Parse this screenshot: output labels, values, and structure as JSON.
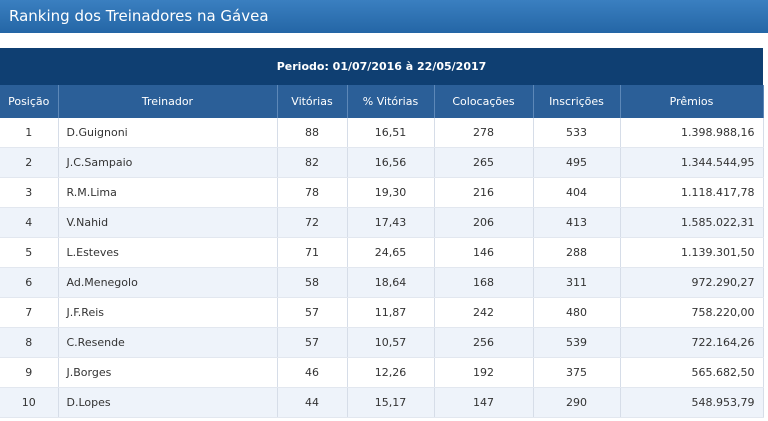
{
  "header": {
    "title": "Ranking dos Treinadores na Gávea"
  },
  "table": {
    "period": "Periodo: 01/07/2016 à 22/05/2017",
    "columns": [
      "Posição",
      "Treinador",
      "Vitórias",
      "% Vitórias",
      "Colocações",
      "Inscrições",
      "Prêmios"
    ],
    "rows": [
      [
        "1",
        "D.Guignoni",
        "88",
        "16,51",
        "278",
        "533",
        "1.398.988,16"
      ],
      [
        "2",
        "J.C.Sampaio",
        "82",
        "16,56",
        "265",
        "495",
        "1.344.544,95"
      ],
      [
        "3",
        "R.M.Lima",
        "78",
        "19,30",
        "216",
        "404",
        "1.118.417,78"
      ],
      [
        "4",
        "V.Nahid",
        "72",
        "17,43",
        "206",
        "413",
        "1.585.022,31"
      ],
      [
        "5",
        "L.Esteves",
        "71",
        "24,65",
        "146",
        "288",
        "1.139.301,50"
      ],
      [
        "6",
        "Ad.Menegolo",
        "58",
        "18,64",
        "168",
        "311",
        "972.290,27"
      ],
      [
        "7",
        "J.F.Reis",
        "57",
        "11,87",
        "242",
        "480",
        "758.220,00"
      ],
      [
        "8",
        "C.Resende",
        "57",
        "10,57",
        "256",
        "539",
        "722.164,26"
      ],
      [
        "9",
        "J.Borges",
        "46",
        "12,26",
        "192",
        "375",
        "565.682,50"
      ],
      [
        "10",
        "D.Lopes",
        "44",
        "15,17",
        "147",
        "290",
        "548.953,79"
      ]
    ]
  }
}
